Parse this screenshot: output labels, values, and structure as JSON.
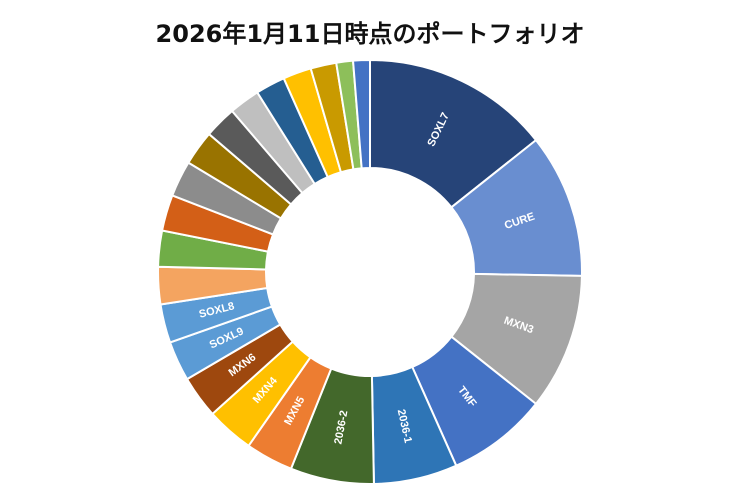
{
  "chart_data": {
    "type": "pie",
    "donut": true,
    "title": "2026年1月11日時点のポートフォリオ",
    "legend": "none",
    "slices": [
      {
        "label": "SOXL7",
        "value": 14.6,
        "color": "#264478"
      },
      {
        "label": "CURE",
        "value": 11.2,
        "color": "#698ED0"
      },
      {
        "label": "MXN3",
        "value": 10.6,
        "color": "#A5A5A5"
      },
      {
        "label": "TMF",
        "value": 7.8,
        "color": "#4472C4"
      },
      {
        "label": "2036-1",
        "value": 6.5,
        "color": "#2E75B6"
      },
      {
        "label": "2036-2",
        "value": 6.5,
        "color": "#43682B"
      },
      {
        "label": "MXN5",
        "value": 3.7,
        "color": "#ED7D31"
      },
      {
        "label": "MXN4",
        "value": 3.7,
        "color": "#FFC000"
      },
      {
        "label": "MXN6",
        "value": 3.3,
        "color": "#9E480E"
      },
      {
        "label": "SOXL9",
        "value": 3.1,
        "color": "#5B9BD5"
      },
      {
        "label": "SOXL8",
        "value": 3.0,
        "color": "#5B9BD5"
      },
      {
        "label": "",
        "value": 2.9,
        "color": "#F4A460"
      },
      {
        "label": "",
        "value": 2.8,
        "color": "#70AD47"
      },
      {
        "label": "",
        "value": 2.8,
        "color": "#D35F17"
      },
      {
        "label": "",
        "value": 2.8,
        "color": "#8C8C8C"
      },
      {
        "label": "",
        "value": 2.7,
        "color": "#997300"
      },
      {
        "label": "",
        "value": 2.5,
        "color": "#5A5A5A"
      },
      {
        "label": "",
        "value": 2.4,
        "color": "#BFBFBF"
      },
      {
        "label": "",
        "value": 2.3,
        "color": "#255E91"
      },
      {
        "label": "",
        "value": 2.2,
        "color": "#FFC000"
      },
      {
        "label": "",
        "value": 2.0,
        "color": "#C99A00"
      },
      {
        "label": "",
        "value": 1.3,
        "color": "#8DBF5A"
      },
      {
        "label": "",
        "value": 1.3,
        "color": "#4472C4"
      }
    ]
  }
}
